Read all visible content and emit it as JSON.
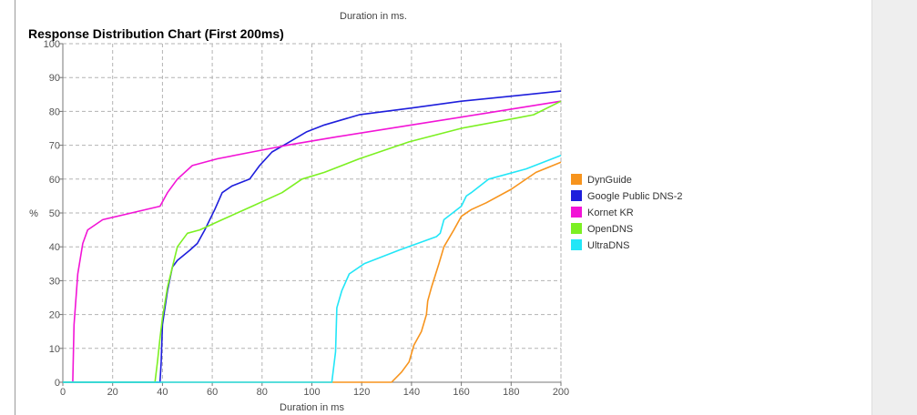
{
  "header": {
    "prev_chart_xlabel": "Duration in ms."
  },
  "chart_data": {
    "type": "line",
    "title": "Response Distribution Chart (First 200ms)",
    "xlabel": "Duration in ms",
    "ylabel": "%",
    "xlim": [
      0,
      200
    ],
    "ylim": [
      0,
      100
    ],
    "x_ticks": [
      0,
      20,
      40,
      60,
      80,
      100,
      120,
      140,
      160,
      180,
      200
    ],
    "y_ticks": [
      0,
      10,
      20,
      30,
      40,
      50,
      60,
      70,
      80,
      90,
      100
    ],
    "grid": true,
    "legend_position": "right",
    "series": [
      {
        "name": "DynGuide",
        "color": "#F7941D",
        "points": [
          [
            0,
            0
          ],
          [
            132,
            0
          ],
          [
            136,
            3
          ],
          [
            139,
            6
          ],
          [
            141,
            11
          ],
          [
            144,
            15
          ],
          [
            146,
            20
          ],
          [
            146.5,
            24
          ],
          [
            148,
            28
          ],
          [
            151,
            35
          ],
          [
            153,
            40
          ],
          [
            157,
            45
          ],
          [
            160,
            49
          ],
          [
            164,
            51
          ],
          [
            170,
            53
          ],
          [
            180,
            57
          ],
          [
            190,
            62
          ],
          [
            200,
            65
          ]
        ]
      },
      {
        "name": "Google Public DNS-2",
        "color": "#1E1EDC",
        "points": [
          [
            0,
            0
          ],
          [
            39,
            0
          ],
          [
            39.5,
            6
          ],
          [
            40,
            17
          ],
          [
            42,
            27
          ],
          [
            44,
            34
          ],
          [
            46,
            36
          ],
          [
            51,
            39
          ],
          [
            54,
            41
          ],
          [
            57,
            45
          ],
          [
            61,
            51
          ],
          [
            64,
            56
          ],
          [
            68,
            58
          ],
          [
            75,
            60
          ],
          [
            79,
            64
          ],
          [
            84,
            68
          ],
          [
            91,
            71
          ],
          [
            98,
            74
          ],
          [
            105,
            76
          ],
          [
            119,
            79
          ],
          [
            140,
            81
          ],
          [
            160,
            83
          ],
          [
            180,
            84.5
          ],
          [
            200,
            86
          ]
        ]
      },
      {
        "name": "Kornet KR",
        "color": "#F214D6",
        "points": [
          [
            4,
            0
          ],
          [
            4.5,
            17
          ],
          [
            6,
            32
          ],
          [
            8,
            41
          ],
          [
            10,
            45
          ],
          [
            16,
            48
          ],
          [
            39,
            52
          ],
          [
            42,
            56
          ],
          [
            46,
            60
          ],
          [
            52,
            64
          ],
          [
            62,
            66
          ],
          [
            76,
            68
          ],
          [
            90,
            70
          ],
          [
            110,
            72.5
          ],
          [
            140,
            76
          ],
          [
            170,
            79.5
          ],
          [
            200,
            83
          ]
        ]
      },
      {
        "name": "OpenDNS",
        "color": "#7CF022",
        "points": [
          [
            0,
            0
          ],
          [
            37,
            0
          ],
          [
            38,
            6
          ],
          [
            39,
            13
          ],
          [
            40,
            19
          ],
          [
            42,
            28
          ],
          [
            44,
            34
          ],
          [
            46,
            40
          ],
          [
            50,
            44
          ],
          [
            55,
            45
          ],
          [
            64,
            48
          ],
          [
            76,
            52
          ],
          [
            88,
            56
          ],
          [
            96,
            60
          ],
          [
            105,
            62
          ],
          [
            119,
            66
          ],
          [
            139,
            71
          ],
          [
            160,
            75
          ],
          [
            182,
            78
          ],
          [
            189,
            79
          ],
          [
            200,
            83
          ]
        ]
      },
      {
        "name": "UltraDNS",
        "color": "#22E6F7",
        "points": [
          [
            0,
            0
          ],
          [
            108,
            0
          ],
          [
            109.5,
            9
          ],
          [
            110,
            22
          ],
          [
            112,
            27
          ],
          [
            115,
            32
          ],
          [
            121,
            35
          ],
          [
            135,
            39
          ],
          [
            150,
            43
          ],
          [
            151.5,
            44
          ],
          [
            153,
            48
          ],
          [
            160,
            52
          ],
          [
            162,
            55
          ],
          [
            164,
            56
          ],
          [
            171,
            60
          ],
          [
            186,
            63
          ],
          [
            200,
            67
          ]
        ]
      }
    ]
  }
}
